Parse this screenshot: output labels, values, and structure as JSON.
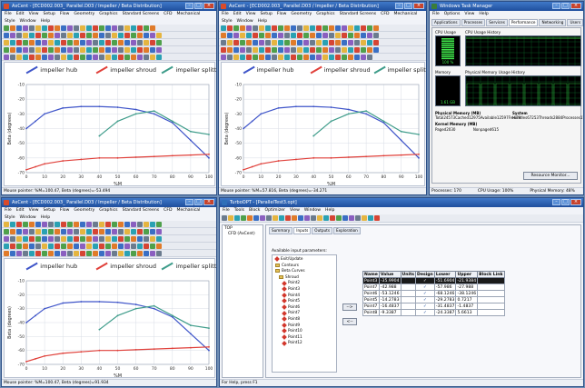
{
  "colors": {
    "hub": "#3f55c9",
    "shroud": "#e0403a",
    "splitter": "#3e9c8a",
    "splitter_tail": "#f39a2c"
  },
  "cad_window": {
    "title_tl": "AxCent - [ECD002.003_ Parallel.D03 / Impeller / Beta Distribution]",
    "title_tr": "AxCent - [ECD002.003_ Parallel.D03 / Impeller / Beta Distribution]",
    "title_bl": "AxCent - [ECD002.003_ Parallel.D03 / Impeller / Beta Distribution]",
    "menu": [
      "File",
      "Edit",
      "View",
      "Setup",
      "Flow",
      "Geometry",
      "Graphics",
      "Standard Screens",
      "CFD",
      "Mechanical"
    ],
    "menu2": [
      "Style",
      "Window",
      "Help"
    ],
    "legend": {
      "hub": "impeller hub",
      "shroud": "impeller shroud",
      "splitter": "impeller splitter"
    },
    "xlabel": "%M",
    "ylabel": "Beta (degrees)",
    "status_tl": "Mouse pointer: %M=100.47, Beta (degrees)=-53.494",
    "status_tr": "Mouse pointer: %M=57.816, Beta (degrees)=-34.271",
    "status_bl": "Mouse pointer: %M=100.47, Beta (degrees)=91.934"
  },
  "chart_data": [
    {
      "type": "line",
      "xlabel": "%M",
      "ylabel": "Beta (degrees)",
      "xlim": [
        0,
        100
      ],
      "ylim": [
        -70,
        -10
      ],
      "x_ticks": [
        0,
        10,
        20,
        30,
        40,
        50,
        60,
        70,
        80,
        90,
        100
      ],
      "y_ticks": [
        -10,
        -20,
        -30,
        -40,
        -50,
        -60,
        -70
      ],
      "series": [
        {
          "name": "impeller hub",
          "x": [
            0,
            5,
            10,
            20,
            30,
            40,
            50,
            60,
            70,
            80,
            90,
            100
          ],
          "values": [
            -40,
            -35,
            -30,
            -26,
            -25,
            -25,
            -25.5,
            -27,
            -30,
            -36,
            -48,
            -60
          ]
        },
        {
          "name": "impeller shroud",
          "x": [
            0,
            5,
            10,
            20,
            30,
            40,
            50,
            60,
            70,
            80,
            90,
            100
          ],
          "values": [
            -68,
            -66,
            -64,
            -62,
            -61,
            -60,
            -60,
            -59.5,
            -59,
            -58.5,
            -58,
            -57.5
          ]
        },
        {
          "name": "impeller splitter",
          "x": [
            40,
            50,
            60,
            70,
            80,
            90,
            100
          ],
          "values": [
            -45,
            -35,
            -30,
            -28,
            -35,
            -42,
            -44
          ]
        }
      ]
    }
  ],
  "taskmgr": {
    "title": "Windows Task Manager",
    "menu": [
      "File",
      "Options",
      "View",
      "Help"
    ],
    "tabs": [
      "Applications",
      "Processes",
      "Services",
      "Performance",
      "Networking",
      "Users"
    ],
    "cpu_usage": "CPU Usage",
    "cpu_hist": "CPU Usage History",
    "memory": "Memory",
    "mem_hist": "Physical Memory Usage History",
    "cpu_value": "100 %",
    "mem_value": "1.61 GB",
    "phys_title": "Physical Memory (MB)",
    "phys": [
      [
        "Total",
        "24573"
      ],
      [
        "Cached",
        "12975"
      ],
      [
        "Available",
        "12597"
      ],
      [
        "Free",
        "79"
      ]
    ],
    "kernel_title": "Kernel Memory (MB)",
    "kernel": [
      [
        "Paged",
        "2030"
      ],
      [
        "Nonpaged",
        "615"
      ]
    ],
    "system_title": "System",
    "system": [
      [
        "Handles",
        "67253"
      ],
      [
        "Threads",
        "2884"
      ],
      [
        "Processes",
        "170"
      ],
      [
        "Up Time",
        "48:08:17:20"
      ],
      [
        "Commit (GB)",
        "17 / 47"
      ]
    ],
    "resource_btn": "Resource Monitor...",
    "status": [
      "Processes: 170",
      "CPU Usage: 100%",
      "Physical Memory: 48%"
    ]
  },
  "turbo": {
    "title": "TurboOPT - [ParallelTest3.opt]",
    "menu": [
      "File",
      "Tools",
      "Block",
      "Optimizer",
      "View",
      "Window",
      "Help"
    ],
    "tree_root": "TOP",
    "tree_child": "CFD (AxCent)",
    "tabs": [
      "Summary",
      "Inputs",
      "Outputs",
      "Exploration"
    ],
    "available_label": "Available input parameters:",
    "tree": [
      [
        "d",
        "Exit/Update"
      ],
      [
        "f",
        "Contours"
      ],
      [
        "f",
        "Beta Curves"
      ],
      [
        "f",
        "Shroud"
      ],
      [
        "d",
        "Point2"
      ],
      [
        "d",
        "Point3"
      ],
      [
        "d",
        "Point4"
      ],
      [
        "d",
        "Point5"
      ],
      [
        "d",
        "Point6"
      ],
      [
        "d",
        "Point7"
      ],
      [
        "d",
        "Point8"
      ],
      [
        "d",
        "Point9"
      ],
      [
        "d",
        "Point10"
      ],
      [
        "d",
        "Point11"
      ],
      [
        "d",
        "Point12"
      ]
    ],
    "btn_add": "-->",
    "btn_remove": "<--",
    "table_headers": [
      "Name",
      "Value",
      "Units",
      "Design",
      "Lower",
      "Upper",
      "Block Link"
    ],
    "rows": [
      {
        "name": "Point3",
        "value": "-35.9904",
        "lower": "-51.6904",
        "upper": "-21.9384",
        "sel": true
      },
      {
        "name": "Point7",
        "value": "-42.988",
        "lower": "-57.986",
        "upper": "-27.988",
        "sel": false
      },
      {
        "name": "Point6",
        "value": "-53.1246",
        "lower": "-68.1246",
        "upper": "-38.1246",
        "sel": false
      },
      {
        "name": "Point5",
        "value": "-14.2783",
        "lower": "-29.2783",
        "upper": "0.7217",
        "sel": false
      },
      {
        "name": "Point7",
        "value": "-16.4837",
        "lower": "-31.4837",
        "upper": "-1.4837",
        "sel": false
      },
      {
        "name": "Point8",
        "value": "-9.3387",
        "lower": "-24.3387",
        "upper": "5.6613",
        "sel": false
      }
    ],
    "check": "✓",
    "status": "For Help, press F1"
  }
}
